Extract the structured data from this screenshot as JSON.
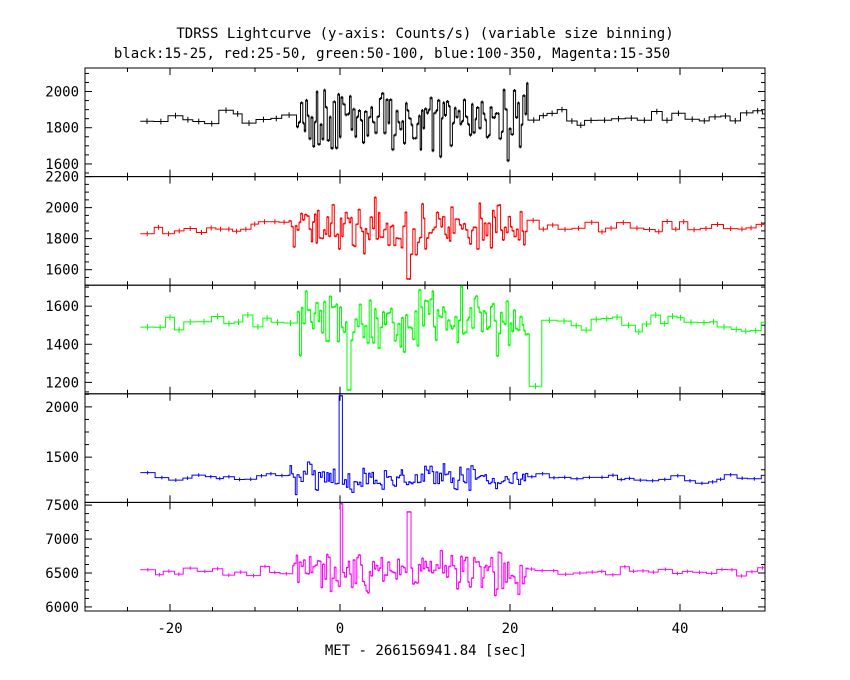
{
  "chart_data": {
    "type": "line",
    "title": "TDRSS Lightcurve (y-axis: Counts/s) (variable size binning)",
    "subtitle": "black:15-25, red:25-50, green:50-100, blue:100-350, Magenta:15-350",
    "xlabel": "MET - 266156941.84 [sec]",
    "xlim": [
      -30,
      50
    ],
    "x_ticks": [
      "-20",
      "0",
      "20",
      "40"
    ],
    "panels": [
      {
        "color": "#000000",
        "ylim": [
          1530,
          2130
        ],
        "y_ticks": [
          "1600",
          "1800",
          "2000"
        ],
        "baseline": 1850,
        "quiet_noise": 35,
        "burst_noise": 160,
        "burst_segments": [
          [
            -6.5,
            22
          ]
        ],
        "spikes": []
      },
      {
        "color": "#ff0000",
        "ylim": [
          1500,
          2200
        ],
        "y_ticks": [
          "1600",
          "1800",
          "2000",
          "2200"
        ],
        "baseline": 1870,
        "quiet_noise": 35,
        "burst_noise": 130,
        "burst_segments": [
          [
            -6.5,
            22
          ]
        ],
        "spikes": [
          [
            8,
            1540
          ]
        ]
      },
      {
        "color": "#00ff00",
        "ylim": [
          1140,
          1710
        ],
        "y_ticks": [
          "1200",
          "1400",
          "1600"
        ],
        "baseline": 1510,
        "quiet_noise": 35,
        "burst_noise": 120,
        "burst_segments": [
          [
            -6.5,
            22
          ]
        ],
        "spikes": [
          [
            22.5,
            1180
          ],
          [
            1,
            1160
          ]
        ]
      },
      {
        "color": "#0000ff",
        "ylim": [
          1050,
          2130
        ],
        "y_ticks": [
          "1500",
          "2000"
        ],
        "baseline": 1300,
        "quiet_noise": 40,
        "burst_noise": 110,
        "burst_segments": [
          [
            -6.5,
            22
          ]
        ],
        "spikes": [
          [
            0,
            2110
          ]
        ]
      },
      {
        "color": "#ff00ff",
        "ylim": [
          5940,
          7540
        ],
        "y_ticks": [
          "6000",
          "6500",
          "7000",
          "7500"
        ],
        "baseline": 6520,
        "quiet_noise": 60,
        "burst_noise": 260,
        "burst_segments": [
          [
            -6.5,
            22
          ]
        ],
        "spikes": [
          [
            0,
            7520
          ],
          [
            8,
            7400
          ]
        ]
      }
    ]
  }
}
